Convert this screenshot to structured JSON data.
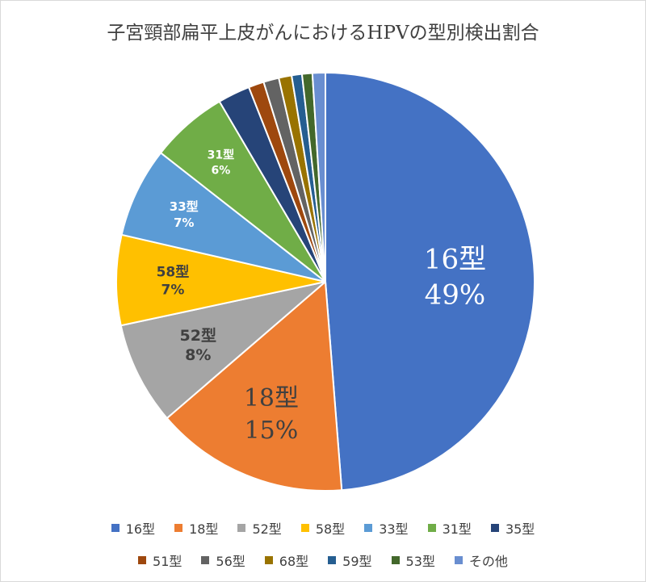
{
  "title": "子宮頸部扁平上皮がんにおけるHPVの型別検出割合",
  "chart_data": {
    "type": "pie",
    "categories": [
      "16型",
      "18型",
      "52型",
      "58型",
      "33型",
      "31型",
      "35型",
      "51型",
      "56型",
      "68型",
      "59型",
      "53型",
      "その他"
    ],
    "values": [
      49,
      15,
      8,
      7,
      7,
      6,
      2.5,
      1.2,
      1.2,
      1,
      0.8,
      0.8,
      1
    ],
    "data_labels": [
      {
        "category": "16型",
        "percent": "49%"
      },
      {
        "category": "18型",
        "percent": "15%"
      },
      {
        "category": "52型",
        "percent": "8%"
      },
      {
        "category": "58型",
        "percent": "7%"
      },
      {
        "category": "33型",
        "percent": "7%"
      },
      {
        "category": "31型",
        "percent": "6%"
      }
    ],
    "colors": [
      "#4472C4",
      "#ED7D31",
      "#A5A5A5",
      "#FFC000",
      "#5B9BD5",
      "#70AD47",
      "#264478",
      "#9E480E",
      "#636363",
      "#997300",
      "#255E91",
      "#43682B",
      "#698ED0"
    ],
    "label_colors": [
      "#ffffff",
      "#404040",
      "#404040",
      "#404040",
      "#ffffff",
      "#ffffff"
    ],
    "start_angle_deg": 0,
    "direction": "clockwise",
    "legend": {
      "placement": "bottom"
    }
  }
}
